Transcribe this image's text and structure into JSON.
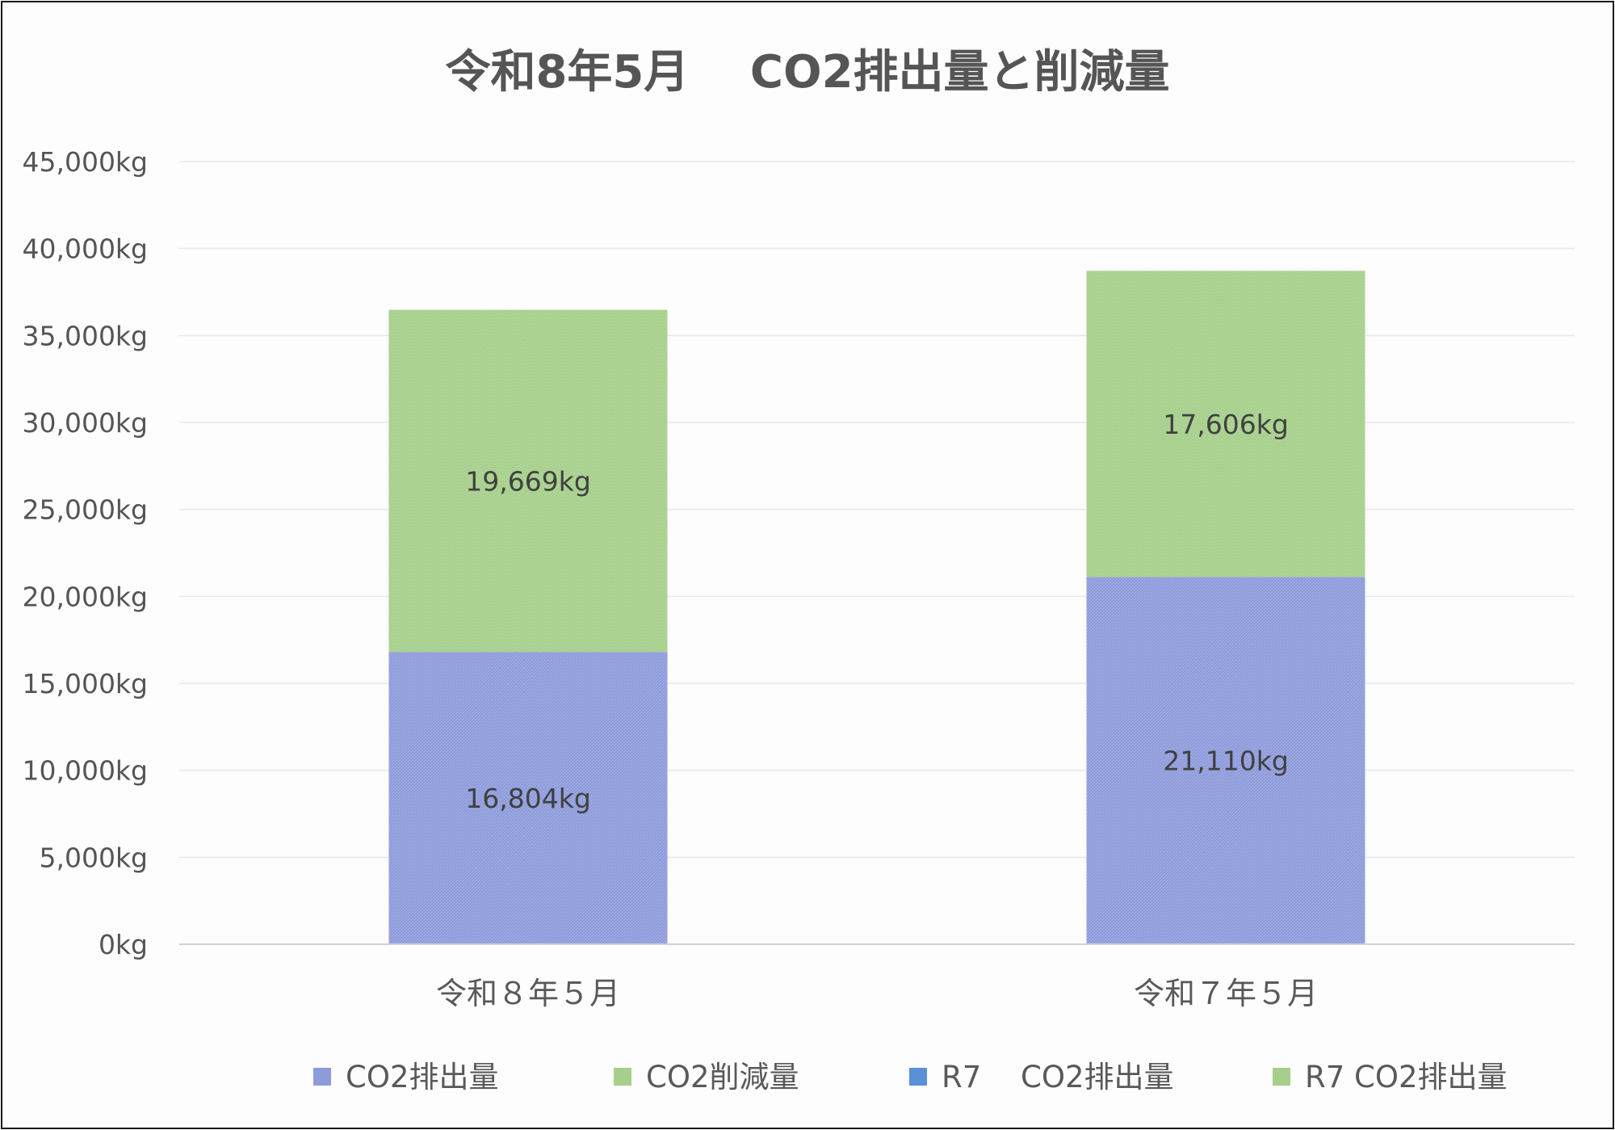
{
  "chart_data": {
    "type": "bar",
    "stacked": true,
    "title": "令和8年5月　 CO2排出量と削減量",
    "categories": [
      "令和８年５月",
      "令和７年５月"
    ],
    "series": [
      {
        "name": "CO2排出量",
        "values": [
          16804,
          null
        ],
        "color": "#8e9bdb"
      },
      {
        "name": "CO2削減量",
        "values": [
          19669,
          null
        ],
        "color": "#a5cf8a"
      },
      {
        "name": "R7　 CO2排出量",
        "values": [
          null,
          21110
        ],
        "color": "#5b8fd6"
      },
      {
        "name": "R7 CO2排出量",
        "values": [
          null,
          17606
        ],
        "color": "#a5cf8a"
      }
    ],
    "bar_fill_colors": [
      [
        "#8e9bdb",
        "#a5cf8a"
      ],
      [
        "#8e9bdb",
        "#a5cf8a"
      ]
    ],
    "data_labels": [
      [
        "16,804kg",
        "19,669kg"
      ],
      [
        "21,110kg",
        "17,606kg"
      ]
    ],
    "ylim": [
      0,
      45000
    ],
    "yticks": [
      0,
      5000,
      10000,
      15000,
      20000,
      25000,
      30000,
      35000,
      40000,
      45000
    ],
    "ytick_labels": [
      "0kg",
      "5,000kg",
      "10,000kg",
      "15,000kg",
      "20,000kg",
      "25,000kg",
      "30,000kg",
      "35,000kg",
      "40,000kg",
      "45,000kg"
    ],
    "grid": true,
    "legend_position": "bottom",
    "xlabel": "",
    "ylabel": ""
  }
}
